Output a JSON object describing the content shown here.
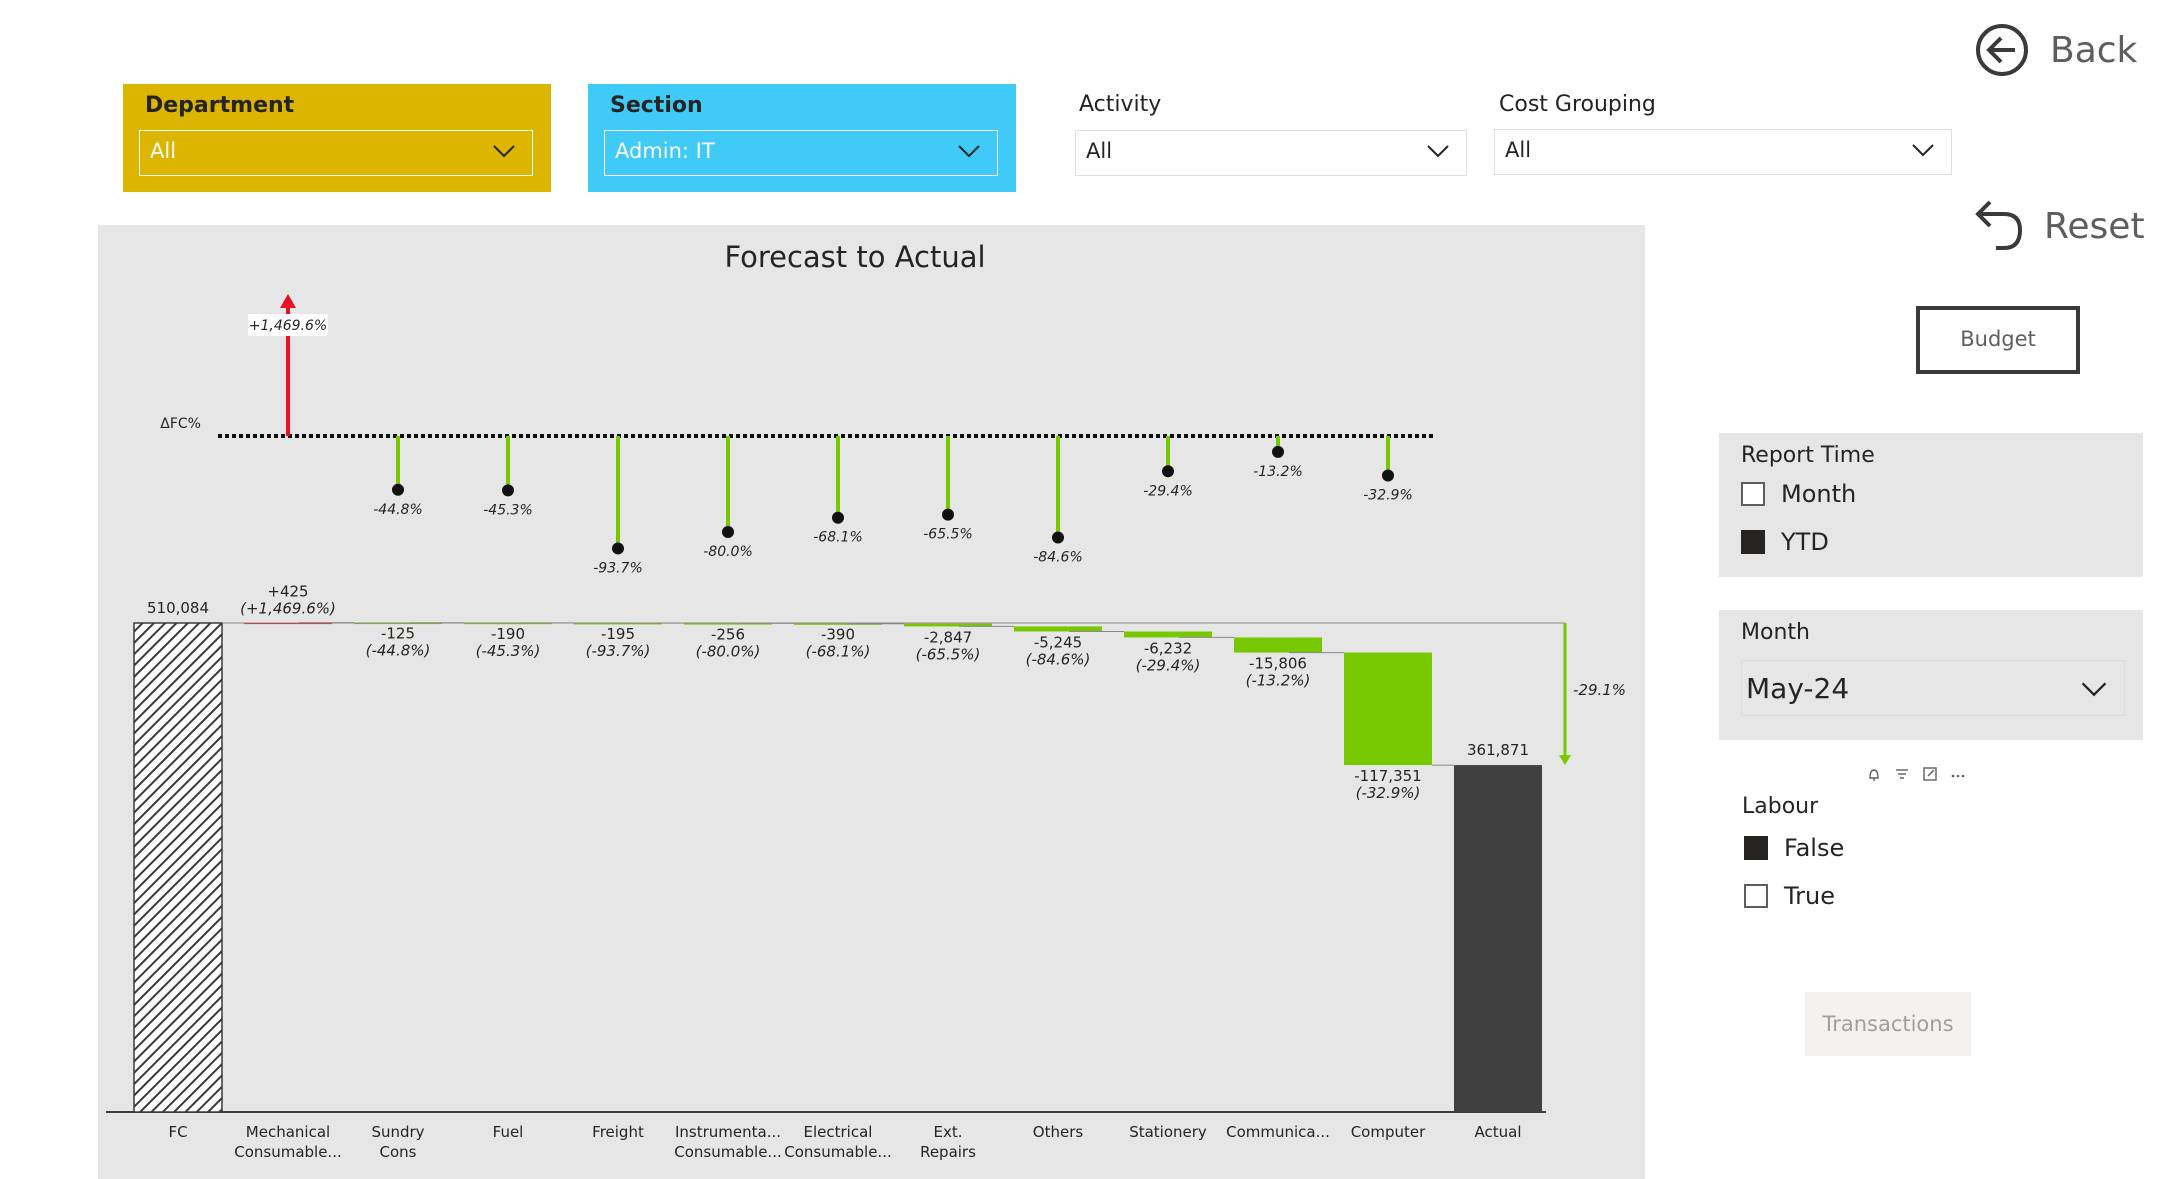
{
  "slicers": {
    "department": {
      "title": "Department",
      "value": "All",
      "bg": "#dbb500"
    },
    "section": {
      "title": "Section",
      "value": "Admin: IT",
      "bg": "#3fcaf7"
    },
    "activity": {
      "title": "Activity",
      "value": "All"
    },
    "cost_grouping": {
      "title": "Cost Grouping",
      "value": "All"
    }
  },
  "nav": {
    "back_label": "Back",
    "reset_label": "Reset",
    "budget_label": "Budget"
  },
  "report_time": {
    "title": "Report Time",
    "options": [
      {
        "label": "Month",
        "checked": false
      },
      {
        "label": "YTD",
        "checked": true
      }
    ]
  },
  "month": {
    "title": "Month",
    "value": "May-24"
  },
  "labour": {
    "title": "Labour",
    "options": [
      {
        "label": "False",
        "checked": true
      },
      {
        "label": "True",
        "checked": false
      }
    ]
  },
  "transactions_label": "Transactions",
  "chart_data": {
    "type": "waterfall",
    "title": "Forecast to Actual",
    "delta_axis_label": "ΔFC%",
    "colors": {
      "decrease": "#77c800",
      "increase": "#e81123",
      "total": "#404040"
    },
    "start": {
      "label": "FC",
      "value": 510084,
      "value_label": "510,084"
    },
    "end": {
      "label": "Actual",
      "value": 361871,
      "value_label": "361,871"
    },
    "total_delta_label": "-29.1%",
    "steps": [
      {
        "label1": "Mechanical",
        "label2": "Consumable...",
        "value": 425,
        "value_label": "+425",
        "pct_label": "(+1,469.6%)",
        "delta_pct": 1469.6,
        "delta_label": "+1,469.6%"
      },
      {
        "label1": "Sundry",
        "label2": "Cons",
        "value": -125,
        "value_label": "-125",
        "pct_label": "(-44.8%)",
        "delta_pct": -44.8,
        "delta_label": "-44.8%"
      },
      {
        "label1": "Fuel",
        "label2": "",
        "value": -190,
        "value_label": "-190",
        "pct_label": "(-45.3%)",
        "delta_pct": -45.3,
        "delta_label": "-45.3%"
      },
      {
        "label1": "Freight",
        "label2": "",
        "value": -195,
        "value_label": "-195",
        "pct_label": "(-93.7%)",
        "delta_pct": -93.7,
        "delta_label": "-93.7%"
      },
      {
        "label1": "Instrumenta...",
        "label2": "Consumable...",
        "value": -256,
        "value_label": "-256",
        "pct_label": "(-80.0%)",
        "delta_pct": -80.0,
        "delta_label": "-80.0%"
      },
      {
        "label1": "Electrical",
        "label2": "Consumable...",
        "value": -390,
        "value_label": "-390",
        "pct_label": "(-68.1%)",
        "delta_pct": -68.1,
        "delta_label": "-68.1%"
      },
      {
        "label1": "Ext.",
        "label2": "Repairs",
        "value": -2847,
        "value_label": "-2,847",
        "pct_label": "(-65.5%)",
        "delta_pct": -65.5,
        "delta_label": "-65.5%"
      },
      {
        "label1": "Others",
        "label2": "",
        "value": -5245,
        "value_label": "-5,245",
        "pct_label": "(-84.6%)",
        "delta_pct": -84.6,
        "delta_label": "-84.6%"
      },
      {
        "label1": "Stationery",
        "label2": "",
        "value": -6232,
        "value_label": "-6,232",
        "pct_label": "(-29.4%)",
        "delta_pct": -29.4,
        "delta_label": "-29.4%"
      },
      {
        "label1": "Communica...",
        "label2": "",
        "value": -15806,
        "value_label": "-15,806",
        "pct_label": "(-13.2%)",
        "delta_pct": -13.2,
        "delta_label": "-13.2%"
      },
      {
        "label1": "Computer",
        "label2": "",
        "value": -117351,
        "value_label": "-117,351",
        "pct_label": "(-32.9%)",
        "delta_pct": -32.9,
        "delta_label": "-32.9%"
      }
    ]
  }
}
